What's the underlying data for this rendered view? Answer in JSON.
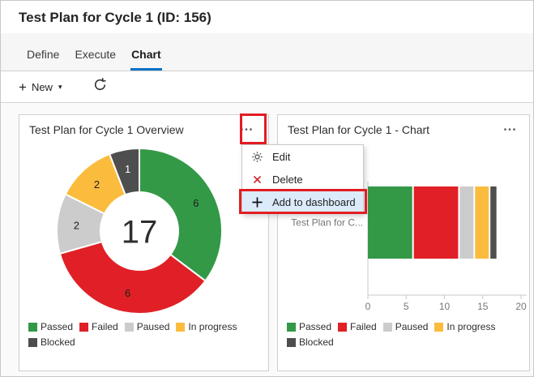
{
  "page": {
    "title": "Test Plan for Cycle 1 (ID: 156)"
  },
  "tabs": {
    "items": [
      {
        "label": "Define",
        "active": false
      },
      {
        "label": "Execute",
        "active": false
      },
      {
        "label": "Chart",
        "active": true
      }
    ],
    "active_underline_color": "#0c72c8"
  },
  "toolbar": {
    "new_label": "New"
  },
  "icons": {
    "plus": "+",
    "caret_down": "▾",
    "more": "•••"
  },
  "widgets": {
    "left": {
      "title": "Test Plan for Cycle 1 Overview"
    },
    "right": {
      "title": "Test Plan for Cycle 1 - Chart"
    }
  },
  "context_menu": {
    "highlight_color": "#dcebfa",
    "items": [
      {
        "label": "Edit",
        "icon": "gear-icon",
        "highlighted": false
      },
      {
        "label": "Delete",
        "icon": "delete-x-icon",
        "highlighted": false
      },
      {
        "label": "Add to dashboard",
        "icon": "plus-icon",
        "highlighted": true
      }
    ]
  },
  "annotation_color": "#e11d23",
  "chart_data": [
    {
      "type": "donut",
      "title": "Test Plan for Cycle 1 Overview",
      "center_total": "17",
      "segments": [
        {
          "label": "Passed",
          "value": 6,
          "color": "#339947",
          "label_color": "#1e1e1e"
        },
        {
          "label": "Failed",
          "value": 6,
          "color": "#e02026",
          "label_color": "#1e1e1e"
        },
        {
          "label": "Paused",
          "value": 2,
          "color": "#cccccc",
          "label_color": "#1e1e1e"
        },
        {
          "label": "In progress",
          "value": 2,
          "color": "#fbbc3d",
          "label_color": "#1e1e1e"
        },
        {
          "label": "Blocked",
          "value": 1,
          "color": "#4e4e4e",
          "label_color": "#ffffff"
        }
      ],
      "legend_position": "bottom"
    },
    {
      "type": "stacked-bar",
      "title": "Test Plan for Cycle 1 - Chart",
      "orientation": "horizontal",
      "category_label": "Test Plan for C...",
      "xlim": [
        0,
        20
      ],
      "x_ticks": [
        0,
        5,
        10,
        15,
        20
      ],
      "segments": [
        {
          "label": "Passed",
          "value": 6,
          "color": "#339947"
        },
        {
          "label": "Failed",
          "value": 6,
          "color": "#e02026"
        },
        {
          "label": "Paused",
          "value": 2,
          "color": "#cccccc"
        },
        {
          "label": "In progress",
          "value": 2,
          "color": "#fbbc3d"
        },
        {
          "label": "Blocked",
          "value": 1,
          "color": "#4e4e4e"
        }
      ],
      "legend_position": "bottom"
    }
  ]
}
